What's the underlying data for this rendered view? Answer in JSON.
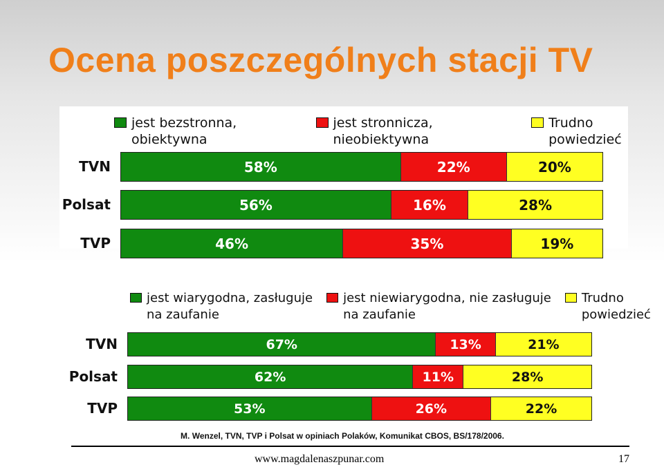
{
  "slide": {
    "title": "Ocena poszczególnych stacji TV",
    "citation": "M. Wenzel, TVN, TVP i Polsat w opiniach Polaków, Komunikat CBOS, BS/178/2006.",
    "footer_url": "www.magdalenaszpunar.com",
    "page_number": "17"
  },
  "colors": {
    "green": "#108a10",
    "red": "#ee1111",
    "yellow": "#ffff22",
    "title": "#f07f1a"
  },
  "chart_data": [
    {
      "type": "bar",
      "stacked": true,
      "orientation": "horizontal",
      "categories": [
        "TVN",
        "Polsat",
        "TVP"
      ],
      "series": [
        {
          "name": "jest bezstronna, obiektywna",
          "color": "green",
          "values": [
            58,
            56,
            46
          ],
          "labels": [
            "58%",
            "56%",
            "46%"
          ]
        },
        {
          "name": "jest stronnicza, nieobiektywna",
          "color": "red",
          "values": [
            22,
            16,
            35
          ],
          "labels": [
            "22%",
            "16%",
            "35%"
          ]
        },
        {
          "name": "Trudno powiedzieć",
          "color": "yellow",
          "values": [
            20,
            28,
            19
          ],
          "labels": [
            "20%",
            "28%",
            "19%"
          ]
        }
      ]
    },
    {
      "type": "bar",
      "stacked": true,
      "orientation": "horizontal",
      "categories": [
        "TVN",
        "Polsat",
        "TVP"
      ],
      "series": [
        {
          "name": "jest wiarygodna, zasługuje\nna zaufanie",
          "color": "green",
          "values": [
            67,
            62,
            53
          ],
          "labels": [
            "67%",
            "62%",
            "53%"
          ]
        },
        {
          "name": "jest niewiarygodna, nie zasługuje\nna zaufanie",
          "color": "red",
          "values": [
            13,
            11,
            26
          ],
          "labels": [
            "13%",
            "11%",
            "26%"
          ]
        },
        {
          "name": "Trudno\npowiedzieć",
          "color": "yellow",
          "values": [
            21,
            28,
            22
          ],
          "labels": [
            "21%",
            "28%",
            "22%"
          ]
        }
      ]
    }
  ]
}
